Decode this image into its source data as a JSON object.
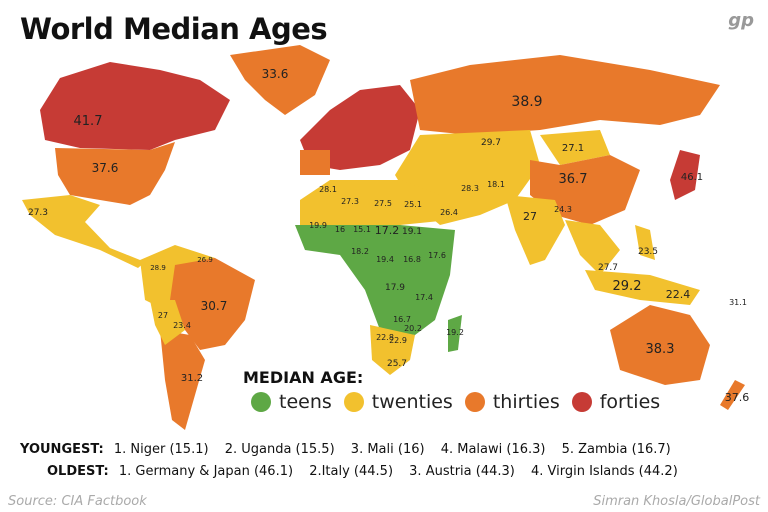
{
  "title": "World Median Ages",
  "logo": "gp",
  "colors": {
    "teens": "#5ea845",
    "twenties": "#f2c12e",
    "thirties": "#e8792b",
    "forties": "#c63b35"
  },
  "map_labels": [
    {
      "value": "33.6",
      "category": "thirties"
    },
    {
      "value": "41.7",
      "category": "forties"
    },
    {
      "value": "37.6",
      "category": "thirties"
    },
    {
      "value": "27.3",
      "category": "twenties"
    },
    {
      "value": "38.9",
      "category": "thirties"
    },
    {
      "value": "29.7",
      "category": "twenties"
    },
    {
      "value": "27.1",
      "category": "twenties"
    },
    {
      "value": "36.7",
      "category": "thirties"
    },
    {
      "value": "46.1",
      "category": "forties"
    },
    {
      "value": "27",
      "category": "twenties"
    },
    {
      "value": "26.4",
      "category": "twenties"
    },
    {
      "value": "28.3",
      "category": "twenties"
    },
    {
      "value": "18.1",
      "category": "teens"
    },
    {
      "value": "30.7",
      "category": "thirties"
    },
    {
      "value": "31.2",
      "category": "thirties"
    },
    {
      "value": "23.4",
      "category": "twenties"
    },
    {
      "value": "27",
      "category": "twenties"
    },
    {
      "value": "26.9",
      "category": "twenties"
    },
    {
      "value": "28.9",
      "category": "twenties"
    },
    {
      "value": "19.9",
      "category": "teens"
    },
    {
      "value": "16",
      "category": "teens"
    },
    {
      "value": "15.1",
      "category": "teens"
    },
    {
      "value": "17.2",
      "category": "teens"
    },
    {
      "value": "19.1",
      "category": "teens"
    },
    {
      "value": "27.3",
      "category": "twenties"
    },
    {
      "value": "27.5",
      "category": "twenties"
    },
    {
      "value": "25.1",
      "category": "twenties"
    },
    {
      "value": "28.1",
      "category": "twenties"
    },
    {
      "value": "18.2",
      "category": "teens"
    },
    {
      "value": "19.4",
      "category": "teens"
    },
    {
      "value": "16.8",
      "category": "teens"
    },
    {
      "value": "17.6",
      "category": "teens"
    },
    {
      "value": "17.9",
      "category": "teens"
    },
    {
      "value": "17.4",
      "category": "teens"
    },
    {
      "value": "16.7",
      "category": "teens"
    },
    {
      "value": "22.8",
      "category": "twenties"
    },
    {
      "value": "22.9",
      "category": "twenties"
    },
    {
      "value": "20.2",
      "category": "twenties"
    },
    {
      "value": "25.7",
      "category": "twenties"
    },
    {
      "value": "19.2",
      "category": "teens"
    },
    {
      "value": "29.2",
      "category": "twenties"
    },
    {
      "value": "27.7",
      "category": "twenties"
    },
    {
      "value": "22.4",
      "category": "twenties"
    },
    {
      "value": "23.5",
      "category": "twenties"
    },
    {
      "value": "38.3",
      "category": "thirties"
    },
    {
      "value": "37.6",
      "category": "thirties"
    },
    {
      "value": "31.1",
      "category": "thirties"
    },
    {
      "value": "24.3",
      "category": "twenties"
    }
  ],
  "legend": {
    "title": "MEDIAN AGE:",
    "items": [
      {
        "label": "teens",
        "category": "teens"
      },
      {
        "label": "twenties",
        "category": "twenties"
      },
      {
        "label": "thirties",
        "category": "thirties"
      },
      {
        "label": "forties",
        "category": "forties"
      }
    ]
  },
  "youngest": {
    "label": "YOUNGEST:",
    "items": [
      "1. Niger (15.1)",
      "2. Uganda (15.5)",
      "3. Mali (16)",
      "4. Malawi (16.3)",
      "5. Zambia (16.7)"
    ]
  },
  "oldest": {
    "label": "OLDEST:",
    "items": [
      "1. Germany & Japan (46.1)",
      "2.Italy (44.5)",
      "3. Austria (44.3)",
      "4. Virgin Islands (44.2)"
    ]
  },
  "source": "Source: CIA Factbook",
  "credit": "Simran Khosla/GlobalPost"
}
